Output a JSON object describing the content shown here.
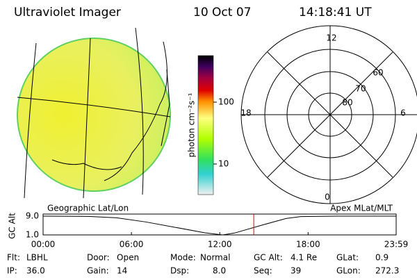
{
  "header": {
    "title": "Ultraviolet Imager",
    "date": "10 Oct 07",
    "time": "14:18:41 UT"
  },
  "colorbar": {
    "label": "photon cm⁻²s⁻¹",
    "scale": "log",
    "lim": [
      3.2,
      566
    ],
    "ticks": [
      10,
      100
    ]
  },
  "polar": {
    "hour_labels": [
      "12",
      "18",
      "6",
      "0"
    ],
    "lat_labels": [
      "60",
      "70",
      "80"
    ]
  },
  "altitude_plot": {
    "left_label": "Geographic Lat/Lon",
    "right_label": "Apex MLat/MLT",
    "y_label": "GC Alt",
    "ylim": [
      1,
      9
    ],
    "yticks": [
      {
        "value": 9,
        "label": "9.0"
      },
      {
        "value": 1,
        "label": "1.0"
      }
    ],
    "xlim": [
      0,
      23.98
    ],
    "xticks": [
      {
        "value": 0,
        "label": "00:00"
      },
      {
        "value": 6,
        "label": "06:00"
      },
      {
        "value": 12,
        "label": "12:00"
      },
      {
        "value": 18,
        "label": "18:00"
      },
      {
        "value": 23.98,
        "label": "23:59"
      }
    ],
    "x": [
      0,
      3,
      5,
      7,
      9,
      11,
      12.2,
      13,
      15,
      16.5,
      17.5,
      20,
      23.98
    ],
    "values": [
      9,
      8.9,
      8.3,
      6.5,
      4.2,
      1.9,
      1.0,
      1.8,
      5.4,
      8.0,
      8.8,
      9,
      9
    ],
    "current_time": 14.31,
    "current_color": "#e00000"
  },
  "status": {
    "rows": [
      [
        {
          "label": "Flt:",
          "value": "LBHL"
        },
        {
          "label": "Door:",
          "value": "Open"
        },
        {
          "label": "Mode:",
          "value": "Normal"
        },
        {
          "label": "GC Alt:",
          "value": "4.1 Re"
        },
        {
          "label": "GLat:",
          "value": "0.9"
        }
      ],
      [
        {
          "label": "IP:",
          "value": "36.0"
        },
        {
          "label": "Gain:",
          "value": "14"
        },
        {
          "label": "Dsp:",
          "value": "8.0"
        },
        {
          "label": "Seq:",
          "value": "39"
        },
        {
          "label": "GLon:",
          "value": "272.3"
        }
      ]
    ]
  }
}
